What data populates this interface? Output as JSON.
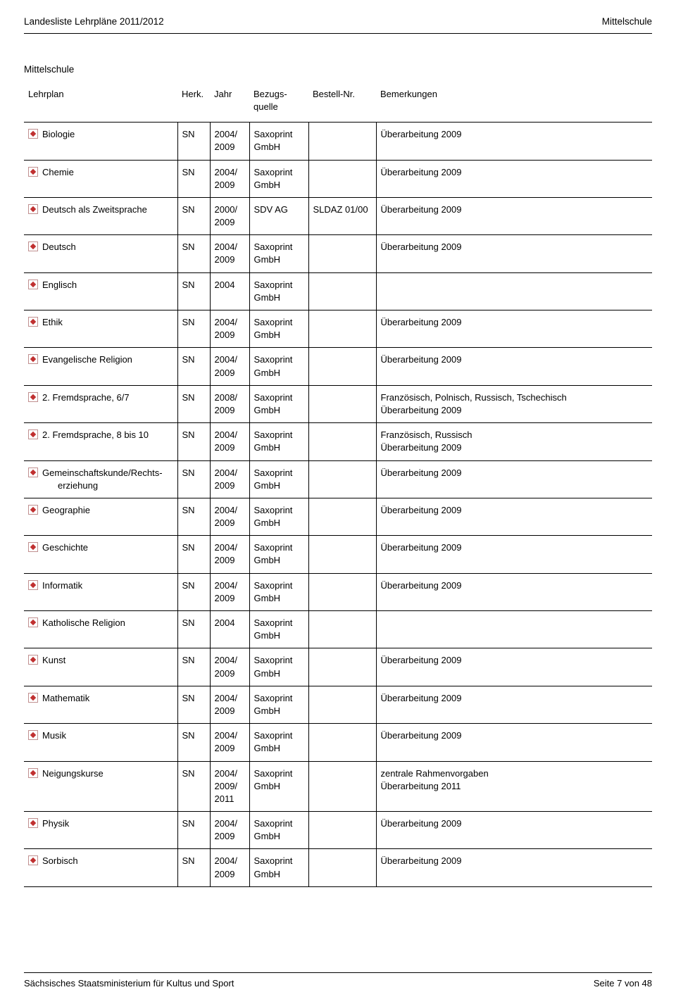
{
  "header": {
    "left": "Landesliste Lehrpläne 2011/2012",
    "right": "Mittelschule"
  },
  "section_title": "Mittelschule",
  "table": {
    "columns": {
      "lehrplan": "Lehrplan",
      "herk": "Herk.",
      "jahr": "Jahr",
      "bezug": "Bezugs-quelle",
      "bestell": "Bestell-Nr.",
      "bemerk": "Bemerkungen"
    },
    "rows": [
      {
        "subject": "Biologie",
        "indent": false,
        "herk": "SN",
        "jahr": "2004/\n2009",
        "bezug": "Saxoprint\nGmbH",
        "bestell": "",
        "bemerk": "Überarbeitung 2009"
      },
      {
        "subject": "Chemie",
        "indent": false,
        "herk": "SN",
        "jahr": "2004/\n2009",
        "bezug": "Saxoprint\nGmbH",
        "bestell": "",
        "bemerk": "Überarbeitung 2009"
      },
      {
        "subject": "Deutsch als Zweitsprache",
        "indent": false,
        "herk": "SN",
        "jahr": "2000/\n2009",
        "bezug": "SDV AG",
        "bestell": "SLDAZ 01/00",
        "bemerk": "Überarbeitung 2009"
      },
      {
        "subject": "Deutsch",
        "indent": false,
        "herk": "SN",
        "jahr": "2004/\n2009",
        "bezug": "Saxoprint\nGmbH",
        "bestell": "",
        "bemerk": "Überarbeitung 2009"
      },
      {
        "subject": "Englisch",
        "indent": false,
        "herk": "SN",
        "jahr": "2004",
        "bezug": "Saxoprint\nGmbH",
        "bestell": "",
        "bemerk": ""
      },
      {
        "subject": "Ethik",
        "indent": false,
        "herk": "SN",
        "jahr": "2004/\n2009",
        "bezug": "Saxoprint\nGmbH",
        "bestell": "",
        "bemerk": "Überarbeitung 2009"
      },
      {
        "subject": "Evangelische Religion",
        "indent": false,
        "herk": "SN",
        "jahr": "2004/\n2009",
        "bezug": "Saxoprint\nGmbH",
        "bestell": "",
        "bemerk": "Überarbeitung 2009"
      },
      {
        "subject": "2. Fremdsprache, 6/7",
        "indent": false,
        "herk": "SN",
        "jahr": "2008/\n2009",
        "bezug": "Saxoprint\nGmbH",
        "bestell": "",
        "bemerk": "Französisch, Polnisch, Russisch, Tschechisch\nÜberarbeitung 2009"
      },
      {
        "subject": "2. Fremdsprache, 8 bis 10",
        "indent": false,
        "herk": "SN",
        "jahr": "2004/\n2009",
        "bezug": "Saxoprint\nGmbH",
        "bestell": "",
        "bemerk": "Französisch, Russisch\nÜberarbeitung 2009"
      },
      {
        "subject": "Gemeinschaftskunde/Rechts-",
        "subject_line2": "erziehung",
        "indent": false,
        "herk": "SN",
        "jahr": "2004/\n2009",
        "bezug": "Saxoprint\nGmbH",
        "bestell": "",
        "bemerk": "Überarbeitung 2009"
      },
      {
        "subject": "Geographie",
        "indent": false,
        "herk": "SN",
        "jahr": "2004/\n2009",
        "bezug": "Saxoprint\nGmbH",
        "bestell": "",
        "bemerk": "Überarbeitung 2009"
      },
      {
        "subject": "Geschichte",
        "indent": false,
        "herk": "SN",
        "jahr": "2004/\n2009",
        "bezug": "Saxoprint\nGmbH",
        "bestell": "",
        "bemerk": "Überarbeitung 2009"
      },
      {
        "subject": "Informatik",
        "indent": false,
        "herk": "SN",
        "jahr": "2004/\n2009",
        "bezug": "Saxoprint\nGmbH",
        "bestell": "",
        "bemerk": "Überarbeitung 2009"
      },
      {
        "subject": "Katholische Religion",
        "indent": false,
        "herk": "SN",
        "jahr": "2004",
        "bezug": "Saxoprint\nGmbH",
        "bestell": "",
        "bemerk": ""
      },
      {
        "subject": "Kunst",
        "indent": false,
        "herk": "SN",
        "jahr": "2004/\n2009",
        "bezug": "Saxoprint\nGmbH",
        "bestell": "",
        "bemerk": "Überarbeitung 2009"
      },
      {
        "subject": "Mathematik",
        "indent": false,
        "herk": "SN",
        "jahr": "2004/\n2009",
        "bezug": "Saxoprint\nGmbH",
        "bestell": "",
        "bemerk": "Überarbeitung 2009"
      },
      {
        "subject": "Musik",
        "indent": false,
        "herk": "SN",
        "jahr": "2004/\n2009",
        "bezug": "Saxoprint\nGmbH",
        "bestell": "",
        "bemerk": "Überarbeitung 2009"
      },
      {
        "subject": "Neigungskurse",
        "indent": false,
        "herk": "SN",
        "jahr": "2004/\n2009/\n2011",
        "bezug": "Saxoprint\nGmbH",
        "bestell": "",
        "bemerk": "zentrale Rahmenvorgaben\nÜberarbeitung 2011"
      },
      {
        "subject": "Physik",
        "indent": false,
        "herk": "SN",
        "jahr": "2004/\n2009",
        "bezug": "Saxoprint\nGmbH",
        "bestell": "",
        "bemerk": "Überarbeitung 2009"
      },
      {
        "subject": "Sorbisch",
        "indent": false,
        "herk": "SN",
        "jahr": "2004/\n2009",
        "bezug": "Saxoprint\nGmbH",
        "bestell": "",
        "bemerk": "Überarbeitung 2009"
      }
    ]
  },
  "footer": {
    "left": "Sächsisches Staatsministerium für Kultus und Sport",
    "right": "Seite 7 von 48"
  }
}
